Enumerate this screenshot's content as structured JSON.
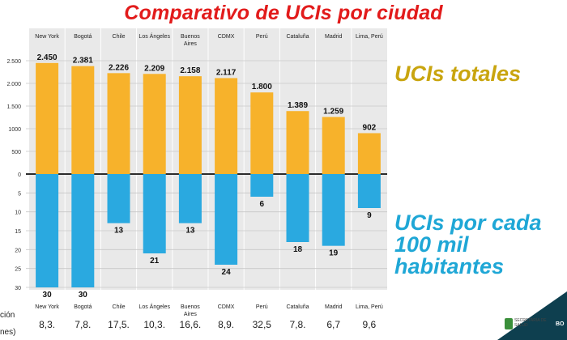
{
  "title": "Comparativo de UCIs por ciudad",
  "labels": {
    "top": "UCIs totales",
    "bottom_line1": "UCIs por cada",
    "bottom_line2": "100 mil",
    "bottom_line3": "habitantes"
  },
  "population": {
    "label_line1": "ción",
    "label_line2": "nes)",
    "values": [
      "8,3.",
      "7,8.",
      "17,5.",
      "10,3.",
      "16,6.",
      "8,9.",
      "32,5",
      "7,8.",
      "6,7",
      "9,6"
    ]
  },
  "footer": {
    "logo_text": "SECRETARÍA DE SALUD",
    "right_text": "BO"
  },
  "colors": {
    "title": "#e21b1b",
    "top_bars": "#f7b22b",
    "bottom_bars": "#2aa9e0",
    "top_label": "#c9a50f",
    "bottom_label": "#1fa7d6",
    "panel": "#e9e9e9"
  },
  "chart_data": [
    {
      "type": "bar",
      "categories": [
        "New York",
        "Bogotá",
        "Chile",
        "Los Ángeles",
        "Buenos Aires",
        "CDMX",
        "Perú",
        "Cataluña",
        "Madrid",
        "Lima, Perú"
      ],
      "values": [
        2450,
        2381,
        2226,
        2209,
        2158,
        2117,
        1800,
        1389,
        1259,
        902
      ],
      "value_labels": [
        "2.450",
        "2.381",
        "2.226",
        "2.209",
        "2.158",
        "2.117",
        "1.800",
        "1.389",
        "1.259",
        "902"
      ],
      "ylim": [
        0,
        2500
      ],
      "yticks": [
        0,
        500,
        1000,
        1500,
        2000,
        2500
      ],
      "ytick_labels": [
        "0",
        "500",
        "1000",
        "1.500",
        "2.000",
        "2.500"
      ],
      "grid": true
    },
    {
      "type": "bar",
      "orientation": "downward",
      "categories": [
        "New York",
        "Bogotá",
        "Chile",
        "Los Ángeles",
        "Buenos Aires",
        "CDMX",
        "Perú",
        "Cataluña",
        "Madrid",
        "Lima, Perú"
      ],
      "values": [
        30,
        30,
        13,
        21,
        13,
        24,
        6,
        18,
        19,
        9
      ],
      "value_labels": [
        "30",
        "30",
        "13",
        "21",
        "13",
        "24",
        "6",
        "18",
        "19",
        "9"
      ],
      "ylim": [
        0,
        30
      ],
      "yticks": [
        5,
        10,
        15,
        20,
        25,
        30
      ],
      "ytick_labels": [
        "5",
        "10",
        "15",
        "20",
        "25",
        "30"
      ],
      "grid": true
    }
  ]
}
